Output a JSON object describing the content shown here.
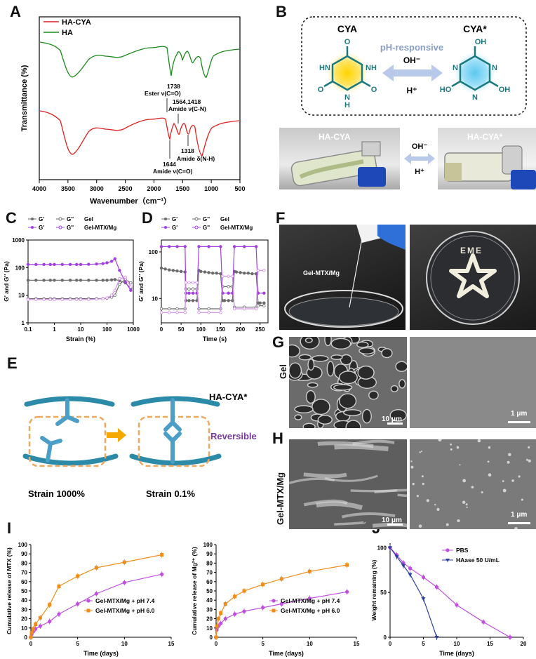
{
  "panel_letters": {
    "A": "A",
    "B": "B",
    "C": "C",
    "D": "D",
    "E": "E",
    "F": "F",
    "G": "G",
    "H": "H",
    "I": "I",
    "J": "J"
  },
  "panel_a": {
    "xlabel": "Wavenumber（cm⁻¹）",
    "ylabel": "Transmittance (%)",
    "xticks": [
      "4000",
      "3500",
      "3000",
      "2500",
      "2000",
      "1500",
      "1000",
      "500"
    ],
    "legend": [
      {
        "name": "HA-CYA",
        "color": "#e02020"
      },
      {
        "name": "HA",
        "color": "#1a8a1a"
      }
    ],
    "annotations": {
      "a1738": "1738",
      "ester": "Ester ν(C=O)",
      "a1564": "1564,1418",
      "amide_cn": "Amide ν(C-N)",
      "a1318": "1318",
      "amide_nh": "Amide δ(N-H)",
      "a1644": "1644",
      "amide_co": "Amide ν(C=O)"
    }
  },
  "panel_b": {
    "cya": "CYA",
    "cya_star": "CYA*",
    "ph_responsive": "pH-responsive",
    "oh": "OH⁻",
    "h": "H⁺",
    "photo_left": "HA-CYA",
    "photo_right": "HA-CYA*",
    "photo_oh": "OH⁻",
    "photo_h": "H⁺",
    "atoms": {
      "O": "O",
      "N": "N",
      "H": "H",
      "HN": "HN",
      "NH": "NH",
      "OH": "OH",
      "HO": "HO"
    }
  },
  "chart_data": [
    {
      "id": "C",
      "type": "line",
      "xlabel": "Strain (%)",
      "ylabel": "G' and G'' (Pa)",
      "xscale": "log",
      "yscale": "log",
      "xlim": [
        0.1,
        1000
      ],
      "ylim": [
        1,
        1000
      ],
      "xticks": [
        "0.1",
        "1",
        "10",
        "100",
        "1000"
      ],
      "yticks": [
        "1",
        "10",
        "100",
        "1000"
      ],
      "legend_rows": [
        [
          "G'",
          "G''",
          "Gel"
        ],
        [
          "G'",
          "G''",
          "Gel-MTX/Mg"
        ]
      ],
      "x": [
        0.1,
        0.2,
        0.4,
        0.7,
        1,
        2,
        4,
        7,
        10,
        20,
        40,
        70,
        100,
        150,
        200,
        300,
        500,
        800
      ],
      "series": [
        {
          "name": "G'",
          "group": "Gel",
          "color": "#6b6b6b",
          "filled": true,
          "values": [
            35,
            35,
            35,
            35,
            35,
            35,
            35,
            35,
            35,
            35,
            35,
            35,
            35,
            36,
            37,
            34,
            28,
            18
          ]
        },
        {
          "name": "G''",
          "group": "Gel",
          "color": "#6b6b6b",
          "filled": false,
          "values": [
            7.5,
            7.5,
            7.5,
            7.5,
            7.5,
            7.5,
            7.5,
            7.5,
            7.5,
            7.5,
            7.5,
            7.6,
            7.8,
            8.5,
            10,
            25,
            38,
            28
          ]
        },
        {
          "name": "G'",
          "group": "Gel-MTX/Mg",
          "color": "#a23fe0",
          "filled": true,
          "values": [
            130,
            130,
            130,
            130,
            130,
            130,
            130,
            130,
            130,
            132,
            135,
            140,
            150,
            170,
            210,
            80,
            30,
            15
          ]
        },
        {
          "name": "G''",
          "group": "Gel-MTX/Mg",
          "color": "#d58ef0",
          "filled": false,
          "values": [
            7,
            7,
            7,
            7,
            7,
            7,
            7,
            7,
            7,
            7,
            7.2,
            7.5,
            8,
            10,
            15,
            40,
            45,
            20
          ]
        }
      ]
    },
    {
      "id": "D",
      "type": "line",
      "xlabel": "Time (s)",
      "ylabel": "G' and G'' (Pa)",
      "yscale": "log",
      "xlim": [
        0,
        270
      ],
      "ylim": [
        3,
        180
      ],
      "xticks": [
        "0",
        "50",
        "100",
        "150",
        "200",
        "250"
      ],
      "yticks": [
        "10",
        "100"
      ],
      "legend_rows": [
        [
          "G'",
          "G''",
          "Gel"
        ],
        [
          "G'",
          "G''",
          "Gel-MTX/Mg"
        ]
      ],
      "series": [
        {
          "name": "G'",
          "group": "Gel",
          "color": "#6b6b6b",
          "filled": true,
          "x": [
            0,
            10,
            20,
            30,
            40,
            50,
            60,
            62,
            70,
            80,
            90,
            95,
            100,
            110,
            120,
            130,
            140,
            150,
            155,
            160,
            170,
            180,
            185,
            190,
            200,
            210,
            220,
            230,
            240,
            245,
            250,
            260
          ],
          "values": [
            45,
            43,
            41,
            40,
            39,
            38,
            37,
            9,
            9,
            9,
            9,
            40,
            38,
            37,
            36,
            35,
            35,
            34,
            9,
            9,
            9,
            9,
            38,
            37,
            36,
            35,
            35,
            34,
            34,
            8,
            8,
            8
          ]
        },
        {
          "name": "G''",
          "group": "Gel",
          "color": "#6b6b6b",
          "filled": false,
          "x": [
            0,
            20,
            40,
            60,
            62,
            70,
            80,
            90,
            95,
            120,
            150,
            155,
            170,
            180,
            185,
            210,
            240,
            245,
            260
          ],
          "values": [
            6,
            6,
            6,
            6,
            16,
            16,
            16,
            16,
            6,
            6,
            6,
            18,
            18,
            18,
            6.5,
            6.5,
            6.5,
            7,
            7
          ]
        },
        {
          "name": "G'",
          "group": "Gel-MTX/Mg",
          "color": "#a23fe0",
          "filled": true,
          "x": [
            0,
            20,
            40,
            60,
            62,
            70,
            80,
            90,
            95,
            120,
            150,
            155,
            170,
            180,
            185,
            210,
            240,
            245,
            260
          ],
          "values": [
            130,
            130,
            130,
            130,
            13,
            13,
            13,
            13,
            130,
            130,
            130,
            13,
            13,
            13,
            130,
            130,
            130,
            13,
            13
          ]
        },
        {
          "name": "G''",
          "group": "Gel-MTX/Mg",
          "color": "#d58ef0",
          "filled": false,
          "x": [
            0,
            20,
            40,
            60,
            62,
            70,
            80,
            90,
            95,
            120,
            150,
            155,
            170,
            180,
            185,
            210,
            240,
            245,
            260
          ],
          "values": [
            5,
            5,
            5,
            5,
            22,
            22,
            22,
            22,
            5,
            5,
            5,
            30,
            30,
            30,
            6,
            6,
            6,
            40,
            40
          ]
        }
      ]
    },
    {
      "id": "I-left",
      "type": "line",
      "xlabel": "Time (days)",
      "ylabel": "Cumulative release of MTX (%)",
      "xlim": [
        0,
        15
      ],
      "ylim": [
        0,
        100
      ],
      "xticks": [
        "0",
        "5",
        "10",
        "15"
      ],
      "yticks": [
        "0",
        "10",
        "20",
        "30",
        "40",
        "50",
        "60",
        "70",
        "80",
        "90",
        "100"
      ],
      "x": [
        0,
        0.08,
        0.25,
        0.5,
        1,
        2,
        3,
        5,
        7,
        10,
        14
      ],
      "series": [
        {
          "name": "Gel-MTX/Mg + pH 7.4",
          "color": "#c04fe0",
          "values": [
            0,
            3,
            6,
            9,
            12,
            17,
            25,
            36,
            47,
            59,
            68
          ]
        },
        {
          "name": "Gel-MTX/Mg + pH 6.0",
          "color": "#f08c1a",
          "values": [
            0,
            5,
            9,
            14,
            21,
            35,
            55,
            66,
            75,
            81,
            89
          ]
        }
      ]
    },
    {
      "id": "I-right",
      "type": "line",
      "xlabel": "Time (days)",
      "ylabel": "Cumulative release of Mg²⁺ (%)",
      "xlim": [
        0,
        15
      ],
      "ylim": [
        0,
        100
      ],
      "xticks": [
        "0",
        "5",
        "10",
        "15"
      ],
      "yticks": [
        "0",
        "10",
        "20",
        "30",
        "40",
        "50",
        "60",
        "70",
        "80",
        "90",
        "100"
      ],
      "x": [
        0,
        0.08,
        0.25,
        0.5,
        1,
        2,
        3,
        5,
        7,
        10,
        14
      ],
      "series": [
        {
          "name": "Gel-MTX/Mg + pH 7.4",
          "color": "#c04fe0",
          "values": [
            0,
            8,
            12,
            15,
            20,
            25,
            28,
            32,
            36,
            42,
            49
          ]
        },
        {
          "name": "Gel-MTX/Mg + pH 6.0",
          "color": "#f08c1a",
          "values": [
            0,
            12,
            20,
            26,
            36,
            44,
            50,
            57,
            63,
            71,
            78
          ]
        }
      ]
    },
    {
      "id": "J",
      "type": "line",
      "xlabel": "Time (days)",
      "ylabel": "Weight remaining (%)",
      "xlim": [
        0,
        20
      ],
      "ylim": [
        0,
        105
      ],
      "xticks": [
        "0",
        "5",
        "10",
        "15",
        "20"
      ],
      "yticks": [
        "0",
        "50",
        "100"
      ],
      "series": [
        {
          "name": "PBS",
          "color": "#c04fe0",
          "x": [
            0,
            1,
            2,
            3,
            5,
            7,
            10,
            14,
            18
          ],
          "values": [
            100,
            92,
            83,
            77,
            67,
            56,
            36,
            17,
            0
          ]
        },
        {
          "name": "HAase 50 U/mL",
          "color": "#2a3fa0",
          "x": [
            0,
            1,
            2,
            3,
            5,
            7
          ],
          "values": [
            100,
            90,
            80,
            70,
            43,
            0
          ]
        }
      ]
    }
  ],
  "panel_e": {
    "label": "HA-CYA*",
    "reversible": "Reversible",
    "strain_high": "Strain 1000%",
    "strain_low": "Strain 0.1%"
  },
  "panel_f": {
    "caption": "Gel-MTX/Mg",
    "dish_text": "EME"
  },
  "panel_g": {
    "row_label": "Gel",
    "scale_10": "10 μm",
    "scale_1": "1 μm"
  },
  "panel_h": {
    "row_label": "Gel-MTX/Mg",
    "scale_10": "10 μm",
    "scale_1": "1 μm"
  }
}
